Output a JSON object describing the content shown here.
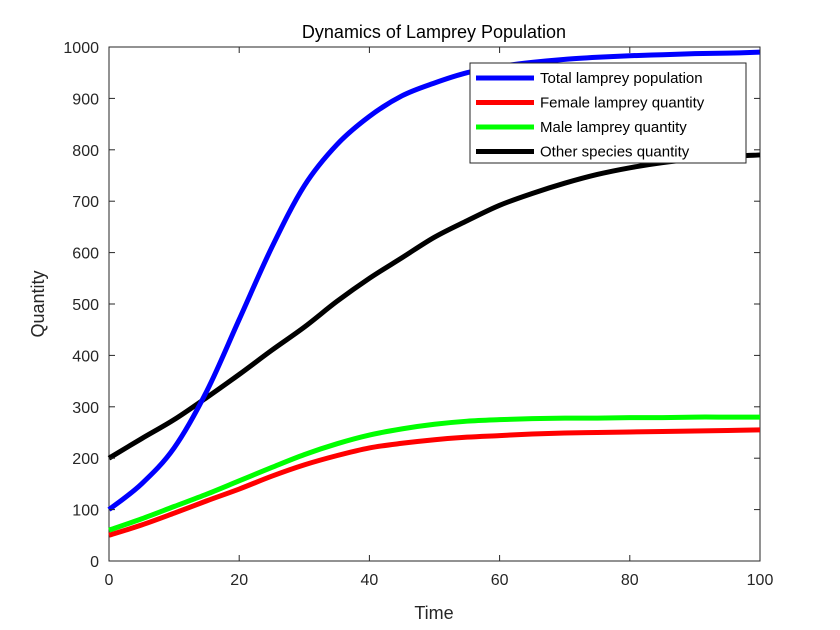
{
  "chart_data": {
    "type": "line",
    "title": "Dynamics of Lamprey Population",
    "xlabel": "Time",
    "ylabel": "Quantity",
    "xlim": [
      0,
      100
    ],
    "ylim": [
      0,
      1000
    ],
    "xticks": [
      0,
      20,
      40,
      60,
      80,
      100
    ],
    "yticks": [
      0,
      100,
      200,
      300,
      400,
      500,
      600,
      700,
      800,
      900,
      1000
    ],
    "grid": false,
    "legend_position": "top-right",
    "x": [
      0,
      5,
      10,
      15,
      20,
      25,
      30,
      35,
      40,
      45,
      50,
      55,
      60,
      65,
      70,
      75,
      80,
      85,
      90,
      95,
      100
    ],
    "series": [
      {
        "name": "Total lamprey population",
        "color": "#0000ff",
        "values": [
          100,
          150,
          220,
          330,
          470,
          610,
          730,
          810,
          865,
          905,
          930,
          950,
          962,
          970,
          976,
          980,
          983,
          985,
          987,
          988,
          990
        ]
      },
      {
        "name": "Female lamprey quantity",
        "color": "#ff0000",
        "values": [
          50,
          70,
          93,
          117,
          140,
          165,
          187,
          205,
          220,
          229,
          236,
          241,
          244,
          247,
          249,
          250,
          251,
          252,
          253,
          254,
          255
        ]
      },
      {
        "name": "Male lamprey quantity",
        "color": "#00ff00",
        "values": [
          60,
          82,
          106,
          130,
          156,
          182,
          207,
          228,
          245,
          257,
          266,
          272,
          275,
          277,
          278,
          278,
          279,
          279,
          280,
          280,
          280
        ]
      },
      {
        "name": "Other species quantity",
        "color": "#000000",
        "values": [
          200,
          238,
          275,
          318,
          363,
          410,
          455,
          505,
          550,
          590,
          630,
          662,
          692,
          715,
          735,
          752,
          765,
          775,
          782,
          787,
          790
        ]
      }
    ]
  }
}
